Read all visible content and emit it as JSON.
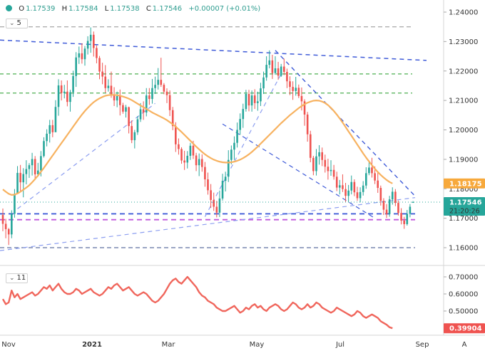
{
  "header": {
    "open_label": "O",
    "open": "1.17539",
    "high_label": "H",
    "high": "1.17584",
    "low_label": "L",
    "low": "1.17538",
    "close_label": "C",
    "close": "1.17546",
    "change": "+0.00007 (+0.01%)"
  },
  "price_legend": {
    "value": "5",
    "icon": "chevron-down-icon"
  },
  "osc_legend": {
    "value": "11",
    "icon": "chevron-down-icon"
  },
  "corner_label": "A",
  "colors": {
    "up": "#26a69a",
    "down": "#ef5350",
    "ma": "#f7b260",
    "osc": "#f0665c",
    "blue_dash": "#3f5bd8",
    "light_dash": "#8c9ef0",
    "green_dash": "#4caf50",
    "purple_dash": "#c158dc",
    "gray_dash": "#9e9e9e",
    "dark_dash": "#5f6fa0",
    "price_marker": "#26a69a",
    "ma_marker": "#f7a93c",
    "osc_marker": "#ef5350"
  },
  "markers": {
    "price": "1.17546",
    "countdown": "21:20:26",
    "ma": "1.18175",
    "osc": "0.39904"
  },
  "chart_data": [
    {
      "type": "candlestick",
      "title": "",
      "x_ticks": [
        "Nov",
        "2021",
        "Mar",
        "May",
        "Jul",
        "Sep"
      ],
      "y_ticks": [
        "1.16000",
        "1.17000",
        "1.18000",
        "1.19000",
        "1.20000",
        "1.21000",
        "1.22000",
        "1.23000",
        "1.24000"
      ],
      "ylim": [
        1.156,
        1.2425
      ],
      "grid": false,
      "ohlc": [
        [
          1.1711,
          1.1733,
          1.1656,
          1.1681
        ],
        [
          1.1681,
          1.1698,
          1.1632,
          1.1663
        ],
        [
          1.1663,
          1.1667,
          1.1609,
          1.1645
        ],
        [
          1.1645,
          1.1727,
          1.1632,
          1.1715
        ],
        [
          1.1715,
          1.1799,
          1.1702,
          1.1783
        ],
        [
          1.1783,
          1.1877,
          1.1783,
          1.1854
        ],
        [
          1.1854,
          1.1881,
          1.1788,
          1.1822
        ],
        [
          1.1822,
          1.187,
          1.1771,
          1.185
        ],
        [
          1.185,
          1.1897,
          1.1815,
          1.1867
        ],
        [
          1.1867,
          1.1887,
          1.1837,
          1.188
        ],
        [
          1.188,
          1.1922,
          1.1845,
          1.1901
        ],
        [
          1.1901,
          1.1911,
          1.1832,
          1.1849
        ],
        [
          1.1849,
          1.1888,
          1.1841,
          1.1862
        ],
        [
          1.1862,
          1.1928,
          1.1842,
          1.1911
        ],
        [
          1.1911,
          1.1975,
          1.1906,
          1.1962
        ],
        [
          1.1962,
          1.2002,
          1.1944,
          1.1987
        ],
        [
          1.1987,
          1.2034,
          1.1957,
          1.2016
        ],
        [
          1.2016,
          1.2034,
          1.1975,
          1.1992
        ],
        [
          1.1992,
          1.2101,
          1.1993,
          1.2078
        ],
        [
          1.2078,
          1.2172,
          1.2048,
          1.2151
        ],
        [
          1.2151,
          1.2168,
          1.21,
          1.2125
        ],
        [
          1.2125,
          1.2153,
          1.2107,
          1.213
        ],
        [
          1.213,
          1.2168,
          1.208,
          1.2095
        ],
        [
          1.2095,
          1.2136,
          1.2062,
          1.2128
        ],
        [
          1.2128,
          1.2201,
          1.2112,
          1.2183
        ],
        [
          1.2183,
          1.2264,
          1.2146,
          1.2246
        ],
        [
          1.2246,
          1.2283,
          1.2224,
          1.226
        ],
        [
          1.226,
          1.2294,
          1.2225,
          1.224
        ],
        [
          1.224,
          1.2285,
          1.2218,
          1.2276
        ],
        [
          1.2276,
          1.2318,
          1.2256,
          1.2302
        ],
        [
          1.2302,
          1.2348,
          1.2262,
          1.2323
        ],
        [
          1.2323,
          1.2334,
          1.2249,
          1.2278
        ],
        [
          1.2278,
          1.2287,
          1.2226,
          1.2244
        ],
        [
          1.2244,
          1.2251,
          1.2172,
          1.2198
        ],
        [
          1.2198,
          1.2228,
          1.2155,
          1.2181
        ],
        [
          1.2181,
          1.222,
          1.2126,
          1.2142
        ],
        [
          1.2142,
          1.2172,
          1.213,
          1.215
        ],
        [
          1.215,
          1.2198,
          1.2109,
          1.2117
        ],
        [
          1.2117,
          1.2145,
          1.2081,
          1.21
        ],
        [
          1.21,
          1.213,
          1.2077,
          1.2115
        ],
        [
          1.2115,
          1.2137,
          1.2049,
          1.2084
        ],
        [
          1.2084,
          1.2092,
          1.2055,
          1.2062
        ],
        [
          1.2062,
          1.2085,
          1.2042,
          1.2077
        ],
        [
          1.2077,
          1.2079,
          1.1988,
          1.2013
        ],
        [
          1.2013,
          1.2032,
          1.1955,
          1.1965
        ],
        [
          1.1965,
          1.2,
          1.1937,
          1.1992
        ],
        [
          1.1992,
          1.2047,
          1.1983,
          1.2036
        ],
        [
          1.2036,
          1.2091,
          1.2027,
          1.207
        ],
        [
          1.207,
          1.2097,
          1.2034,
          1.2059
        ],
        [
          1.2059,
          1.2142,
          1.2046,
          1.2117
        ],
        [
          1.2117,
          1.2142,
          1.2085,
          1.2105
        ],
        [
          1.2105,
          1.2173,
          1.2089,
          1.2142
        ],
        [
          1.2142,
          1.2181,
          1.2122,
          1.2153
        ],
        [
          1.2153,
          1.221,
          1.2137,
          1.217
        ],
        [
          1.217,
          1.2245,
          1.2146,
          1.2153
        ],
        [
          1.2153,
          1.2159,
          1.2121,
          1.213
        ],
        [
          1.213,
          1.2141,
          1.2091,
          1.2118
        ],
        [
          1.2118,
          1.2134,
          1.2047,
          1.2067
        ],
        [
          1.2067,
          1.2078,
          1.1999,
          1.2013
        ],
        [
          1.2013,
          1.2026,
          1.1925,
          1.1951
        ],
        [
          1.1951,
          1.1971,
          1.1916,
          1.1935
        ],
        [
          1.1935,
          1.1941,
          1.1885,
          1.1896
        ],
        [
          1.1896,
          1.1929,
          1.1864,
          1.1889
        ],
        [
          1.1889,
          1.1928,
          1.1869,
          1.1912
        ],
        [
          1.1912,
          1.1956,
          1.1898,
          1.1946
        ],
        [
          1.1946,
          1.1963,
          1.1901,
          1.1913
        ],
        [
          1.1913,
          1.1922,
          1.186,
          1.188
        ],
        [
          1.188,
          1.192,
          1.1843,
          1.1901
        ],
        [
          1.1901,
          1.1917,
          1.1858,
          1.1874
        ],
        [
          1.1874,
          1.1891,
          1.1807,
          1.1832
        ],
        [
          1.1832,
          1.1855,
          1.178,
          1.1795
        ],
        [
          1.1795,
          1.1816,
          1.1735,
          1.1762
        ],
        [
          1.1762,
          1.1787,
          1.1725,
          1.1739
        ],
        [
          1.1739,
          1.1759,
          1.1703,
          1.1719
        ],
        [
          1.1719,
          1.1794,
          1.1704,
          1.1767
        ],
        [
          1.1767,
          1.1851,
          1.176,
          1.1827
        ],
        [
          1.1827,
          1.1858,
          1.1791,
          1.1841
        ],
        [
          1.1841,
          1.1931,
          1.1823,
          1.1898
        ],
        [
          1.1898,
          1.1947,
          1.1883,
          1.1933
        ],
        [
          1.1933,
          1.1978,
          1.1898,
          1.1956
        ],
        [
          1.1956,
          1.2025,
          1.194,
          1.2
        ],
        [
          1.2,
          1.2056,
          1.1983,
          1.2037
        ],
        [
          1.2037,
          1.2089,
          1.2007,
          1.2071
        ],
        [
          1.2071,
          1.2136,
          1.2062,
          1.2122
        ],
        [
          1.2122,
          1.2136,
          1.2063,
          1.2083
        ],
        [
          1.2083,
          1.2134,
          1.2062,
          1.2117
        ],
        [
          1.2117,
          1.2138,
          1.2071,
          1.2091
        ],
        [
          1.2091,
          1.213,
          1.2065,
          1.2097
        ],
        [
          1.2097,
          1.216,
          1.2081,
          1.2141
        ],
        [
          1.2141,
          1.2198,
          1.2122,
          1.2178
        ],
        [
          1.2178,
          1.225,
          1.2167,
          1.2221
        ],
        [
          1.2221,
          1.227,
          1.2209,
          1.2236
        ],
        [
          1.2236,
          1.2255,
          1.2173,
          1.2193
        ],
        [
          1.2193,
          1.225,
          1.2187,
          1.2209
        ],
        [
          1.2209,
          1.2231,
          1.217,
          1.2184
        ],
        [
          1.2184,
          1.2224,
          1.218,
          1.2215
        ],
        [
          1.2215,
          1.2242,
          1.2186,
          1.2197
        ],
        [
          1.2197,
          1.2208,
          1.2142,
          1.2165
        ],
        [
          1.2165,
          1.2182,
          1.2118,
          1.2146
        ],
        [
          1.2146,
          1.2165,
          1.2102,
          1.2132
        ],
        [
          1.2132,
          1.218,
          1.2116,
          1.2143
        ],
        [
          1.2143,
          1.2154,
          1.2108,
          1.2115
        ],
        [
          1.2115,
          1.2144,
          1.2066,
          1.2097
        ],
        [
          1.2097,
          1.2104,
          1.2014,
          1.2052
        ],
        [
          1.2052,
          1.2061,
          1.196,
          1.1985
        ],
        [
          1.1985,
          1.1997,
          1.189,
          1.1905
        ],
        [
          1.1905,
          1.1912,
          1.1846,
          1.186
        ],
        [
          1.186,
          1.1935,
          1.1845,
          1.191
        ],
        [
          1.191,
          1.1948,
          1.1882,
          1.1924
        ],
        [
          1.1924,
          1.194,
          1.1877,
          1.1898
        ],
        [
          1.1898,
          1.1916,
          1.1855,
          1.1875
        ],
        [
          1.1875,
          1.1902,
          1.1831,
          1.186
        ],
        [
          1.186,
          1.1897,
          1.1844,
          1.1864
        ],
        [
          1.1864,
          1.1881,
          1.1831,
          1.1841
        ],
        [
          1.1841,
          1.1858,
          1.1792,
          1.1804
        ],
        [
          1.1804,
          1.183,
          1.1781,
          1.1812
        ],
        [
          1.1812,
          1.1849,
          1.1789,
          1.1799
        ],
        [
          1.1799,
          1.182,
          1.1756,
          1.1776
        ],
        [
          1.1776,
          1.1813,
          1.1755,
          1.1794
        ],
        [
          1.1794,
          1.1845,
          1.1781,
          1.1823
        ],
        [
          1.1823,
          1.1832,
          1.1775,
          1.1788
        ],
        [
          1.1788,
          1.1807,
          1.1759,
          1.1768
        ],
        [
          1.1768,
          1.1805,
          1.1754,
          1.1789
        ],
        [
          1.1789,
          1.1826,
          1.1777,
          1.1811
        ],
        [
          1.1811,
          1.1873,
          1.18,
          1.1853
        ],
        [
          1.1853,
          1.1896,
          1.1846,
          1.1872
        ],
        [
          1.1872,
          1.1905,
          1.1838,
          1.1853
        ],
        [
          1.1853,
          1.1876,
          1.1816,
          1.1828
        ],
        [
          1.1828,
          1.1856,
          1.1786,
          1.1803
        ],
        [
          1.1803,
          1.1811,
          1.1743,
          1.1759
        ],
        [
          1.1759,
          1.1768,
          1.1711,
          1.1729
        ],
        [
          1.1729,
          1.1748,
          1.1701,
          1.1714
        ],
        [
          1.1714,
          1.1776,
          1.1705,
          1.1764
        ],
        [
          1.1764,
          1.1805,
          1.1746,
          1.179
        ],
        [
          1.179,
          1.1799,
          1.1741,
          1.1752
        ],
        [
          1.1752,
          1.176,
          1.1709,
          1.1718
        ],
        [
          1.1718,
          1.1734,
          1.1679,
          1.1692
        ],
        [
          1.1692,
          1.1705,
          1.1664,
          1.168
        ],
        [
          1.168,
          1.1728,
          1.1675,
          1.1715
        ],
        [
          1.1715,
          1.1748,
          1.1703,
          1.1739
        ],
        [
          1.17539,
          1.17584,
          1.17538,
          1.17546
        ]
      ],
      "moving_average": [
        1.1798,
        1.179,
        1.1783,
        1.1779,
        1.178,
        1.1784,
        1.179,
        1.1797,
        1.1804,
        1.1812,
        1.1822,
        1.1833,
        1.1845,
        1.1858,
        1.1871,
        1.1885,
        1.1899,
        1.1913,
        1.1927,
        1.1941,
        1.1955,
        1.1969,
        1.1983,
        1.1997,
        1.2011,
        1.2025,
        1.2039,
        1.2052,
        1.2064,
        1.2075,
        1.2085,
        1.2094,
        1.2101,
        1.2107,
        1.2112,
        1.2116,
        1.2118,
        1.2119,
        1.2119,
        1.2118,
        1.2116,
        1.2113,
        1.211,
        1.2106,
        1.2101,
        1.2095,
        1.2089,
        1.2083,
        1.2077,
        1.2071,
        1.2065,
        1.2059,
        1.2054,
        1.2049,
        1.2044,
        1.2039,
        1.2033,
        1.2026,
        1.2019,
        1.2011,
        1.2002,
        1.1993,
        1.1983,
        1.1973,
        1.1963,
        1.1953,
        1.1943,
        1.1934,
        1.1925,
        1.1917,
        1.191,
        1.1904,
        1.1899,
        1.1895,
        1.1892,
        1.189,
        1.1889,
        1.1889,
        1.189,
        1.1892,
        1.1895,
        1.1899,
        1.1904,
        1.191,
        1.1917,
        1.1925,
        1.1934,
        1.1943,
        1.1953,
        1.1963,
        1.1973,
        1.1983,
        1.1993,
        1.2003,
        1.2013,
        1.2023,
        1.2032,
        1.2041,
        1.205,
        1.2058,
        1.2066,
        1.2074,
        1.2081,
        1.2087,
        1.2092,
        1.2096,
        1.2099,
        1.21,
        1.2099,
        1.2096,
        1.2091,
        1.2084,
        1.2075,
        1.2064,
        1.2052,
        1.2039,
        1.2025,
        1.201,
        1.1995,
        1.198,
        1.1965,
        1.195,
        1.1935,
        1.192,
        1.1906,
        1.1893,
        1.188,
        1.1868,
        1.1857,
        1.1847,
        1.1838,
        1.183,
        1.1823,
        1.1818
      ]
    },
    {
      "type": "line",
      "title": "",
      "y_ticks": [
        "0.50000",
        "0.60000",
        "0.70000"
      ],
      "ylim": [
        0.36,
        0.745
      ],
      "values": [
        0.57,
        0.54,
        0.55,
        0.62,
        0.58,
        0.6,
        0.57,
        0.58,
        0.59,
        0.6,
        0.61,
        0.59,
        0.6,
        0.62,
        0.64,
        0.63,
        0.65,
        0.62,
        0.64,
        0.66,
        0.63,
        0.61,
        0.6,
        0.6,
        0.61,
        0.63,
        0.62,
        0.6,
        0.61,
        0.62,
        0.63,
        0.61,
        0.6,
        0.59,
        0.6,
        0.62,
        0.64,
        0.63,
        0.65,
        0.66,
        0.64,
        0.62,
        0.63,
        0.64,
        0.62,
        0.6,
        0.59,
        0.6,
        0.61,
        0.6,
        0.58,
        0.56,
        0.55,
        0.56,
        0.58,
        0.6,
        0.63,
        0.66,
        0.68,
        0.69,
        0.67,
        0.66,
        0.68,
        0.7,
        0.68,
        0.66,
        0.64,
        0.61,
        0.59,
        0.58,
        0.56,
        0.55,
        0.54,
        0.52,
        0.51,
        0.5,
        0.5,
        0.51,
        0.52,
        0.53,
        0.51,
        0.49,
        0.5,
        0.52,
        0.51,
        0.53,
        0.54,
        0.52,
        0.53,
        0.51,
        0.5,
        0.52,
        0.53,
        0.54,
        0.53,
        0.51,
        0.5,
        0.51,
        0.53,
        0.55,
        0.54,
        0.52,
        0.51,
        0.52,
        0.54,
        0.52,
        0.53,
        0.55,
        0.54,
        0.52,
        0.51,
        0.5,
        0.49,
        0.5,
        0.52,
        0.51,
        0.5,
        0.49,
        0.48,
        0.47,
        0.48,
        0.5,
        0.49,
        0.47,
        0.46,
        0.47,
        0.48,
        0.47,
        0.46,
        0.44,
        0.43,
        0.42,
        0.405,
        0.399
      ]
    }
  ]
}
